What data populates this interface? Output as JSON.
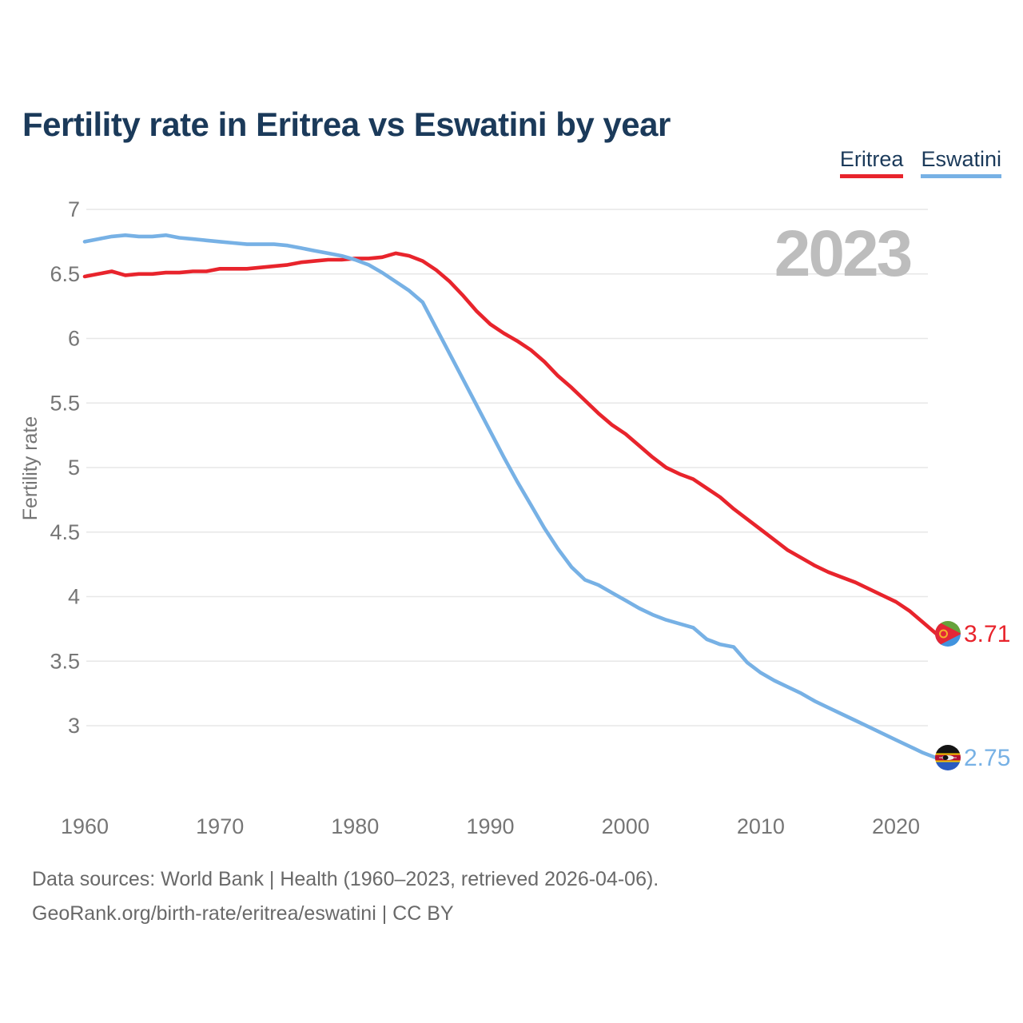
{
  "title": "Fertility rate in Eritrea vs Eswatini by year",
  "watermark": "2023",
  "legend": [
    {
      "label": "Eritrea",
      "color": "#e8242c"
    },
    {
      "label": "Eswatini",
      "color": "#77b1e5"
    }
  ],
  "end_labels": [
    {
      "series": "Eritrea",
      "value": "3.71"
    },
    {
      "series": "Eswatini",
      "value": "2.75"
    }
  ],
  "footer": {
    "line1": "Data sources: World Bank | Health (1960–2023, retrieved 2026-04-06).",
    "line2": "GeoRank.org/birth-rate/eritrea/eswatini | CC BY"
  },
  "colors": {
    "title": "#1b3a5a",
    "grid": "#e7e7e7",
    "tick_text": "#767676",
    "watermark": "#bdbdbd",
    "footer_text": "#696969"
  },
  "chart_data": {
    "type": "line",
    "title": "Fertility rate in Eritrea vs Eswatini by year",
    "xlabel": "",
    "ylabel": "Fertility rate",
    "ylim": [
      3,
      7
    ],
    "yticks": [
      7,
      6.5,
      6,
      5.5,
      5,
      4.5,
      4,
      3.5,
      3
    ],
    "xticks": [
      1960,
      1970,
      1980,
      1990,
      2000,
      2010,
      2020
    ],
    "grid": true,
    "legend_position": "top-right",
    "x": [
      1960,
      1961,
      1962,
      1963,
      1964,
      1965,
      1966,
      1967,
      1968,
      1969,
      1970,
      1971,
      1972,
      1973,
      1974,
      1975,
      1976,
      1977,
      1978,
      1979,
      1980,
      1981,
      1982,
      1983,
      1984,
      1985,
      1986,
      1987,
      1988,
      1989,
      1990,
      1991,
      1992,
      1993,
      1994,
      1995,
      1996,
      1997,
      1998,
      1999,
      2000,
      2001,
      2002,
      2003,
      2004,
      2005,
      2006,
      2007,
      2008,
      2009,
      2010,
      2011,
      2012,
      2013,
      2014,
      2015,
      2016,
      2017,
      2018,
      2019,
      2020,
      2021,
      2022,
      2023
    ],
    "series": [
      {
        "name": "Eritrea",
        "color": "#e8242c",
        "end_value": 3.71,
        "values": [
          6.48,
          6.5,
          6.52,
          6.49,
          6.5,
          6.5,
          6.51,
          6.51,
          6.52,
          6.52,
          6.54,
          6.54,
          6.54,
          6.55,
          6.56,
          6.57,
          6.59,
          6.6,
          6.61,
          6.61,
          6.62,
          6.62,
          6.63,
          6.66,
          6.64,
          6.6,
          6.53,
          6.44,
          6.33,
          6.21,
          6.11,
          6.04,
          5.98,
          5.91,
          5.82,
          5.71,
          5.62,
          5.52,
          5.42,
          5.33,
          5.26,
          5.17,
          5.08,
          5.0,
          4.95,
          4.91,
          4.84,
          4.77,
          4.68,
          4.6,
          4.52,
          4.44,
          4.36,
          4.3,
          4.24,
          4.19,
          4.15,
          4.11,
          4.06,
          4.01,
          3.96,
          3.89,
          3.8,
          3.71
        ]
      },
      {
        "name": "Eswatini",
        "color": "#77b1e5",
        "end_value": 2.75,
        "values": [
          6.75,
          6.77,
          6.79,
          6.8,
          6.79,
          6.79,
          6.8,
          6.78,
          6.77,
          6.76,
          6.75,
          6.74,
          6.73,
          6.73,
          6.73,
          6.72,
          6.7,
          6.68,
          6.66,
          6.64,
          6.61,
          6.57,
          6.51,
          6.44,
          6.37,
          6.28,
          6.08,
          5.88,
          5.68,
          5.48,
          5.28,
          5.08,
          4.89,
          4.71,
          4.53,
          4.37,
          4.23,
          4.13,
          4.09,
          4.03,
          3.97,
          3.91,
          3.86,
          3.82,
          3.79,
          3.76,
          3.67,
          3.63,
          3.61,
          3.49,
          3.41,
          3.35,
          3.3,
          3.25,
          3.19,
          3.14,
          3.09,
          3.04,
          2.99,
          2.94,
          2.89,
          2.84,
          2.79,
          2.75
        ]
      }
    ]
  }
}
